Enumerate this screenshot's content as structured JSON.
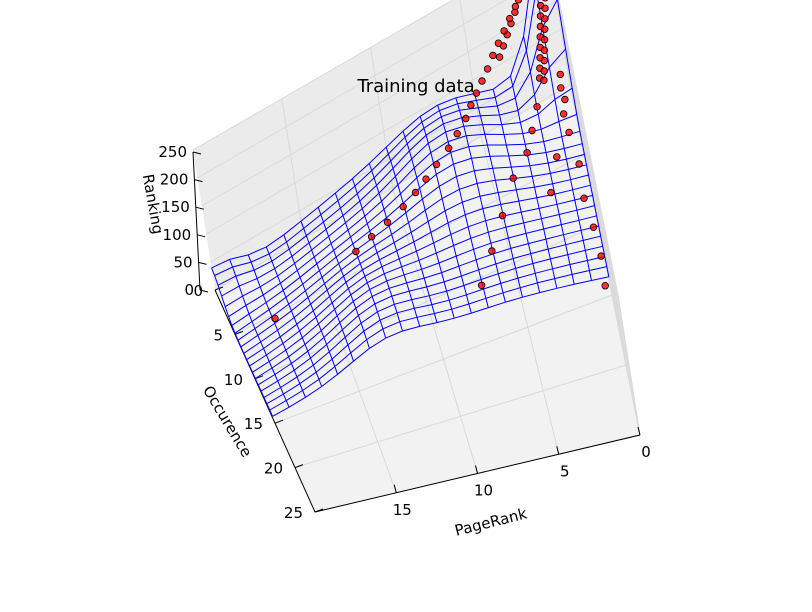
{
  "chart_data": {
    "type": "scatter",
    "subtype": "3d-surface-with-scatter",
    "title": "Training data",
    "xlabel": "PageRank",
    "ylabel": "Occurence",
    "zlabel": "Ranking",
    "xlim": [
      0,
      20
    ],
    "ylim": [
      0,
      25
    ],
    "zlim": [
      0,
      250
    ],
    "x_ticks": [
      "0",
      "5",
      "10",
      "15"
    ],
    "y_ticks": [
      "0",
      "5",
      "10",
      "15",
      "20",
      "25"
    ],
    "z_ticks": [
      "0",
      "50",
      "100",
      "150",
      "200",
      "250"
    ],
    "grid": true,
    "surface_color": "#0000ff",
    "point_color": "#ff0000",
    "point_edge_color": "#000000",
    "pane_color": "#f2f2f2",
    "surface_grid": {
      "rows": 20,
      "cols": 20
    },
    "points": [
      [
        0.0,
        0.0,
        255
      ],
      [
        0.1,
        0.0,
        250
      ],
      [
        0.2,
        0.1,
        246
      ],
      [
        0.3,
        0.1,
        240
      ],
      [
        0.2,
        0.2,
        236
      ],
      [
        0.4,
        0.2,
        230
      ],
      [
        0.5,
        0.3,
        225
      ],
      [
        0.3,
        0.3,
        220
      ],
      [
        0.6,
        0.4,
        214
      ],
      [
        0.4,
        0.5,
        208
      ],
      [
        0.7,
        0.5,
        202
      ],
      [
        0.5,
        0.6,
        196
      ],
      [
        0.8,
        0.6,
        190
      ],
      [
        0.6,
        0.7,
        184
      ],
      [
        0.9,
        0.8,
        178
      ],
      [
        0.7,
        0.9,
        172
      ],
      [
        1.0,
        1.0,
        166
      ],
      [
        0.8,
        1.1,
        160
      ],
      [
        1.1,
        1.2,
        154
      ],
      [
        0.9,
        1.3,
        148
      ],
      [
        1.2,
        1.4,
        142
      ],
      [
        1.0,
        1.5,
        136
      ],
      [
        1.3,
        1.6,
        130
      ],
      [
        1.1,
        1.7,
        124
      ],
      [
        1.4,
        1.8,
        118
      ],
      [
        1.2,
        1.9,
        112
      ],
      [
        1.5,
        2.0,
        106
      ],
      [
        1.3,
        2.1,
        100
      ],
      [
        1.6,
        2.2,
        95
      ],
      [
        1.4,
        2.3,
        90
      ],
      [
        1.0,
        0.2,
        244
      ],
      [
        1.2,
        0.3,
        238
      ],
      [
        1.5,
        0.5,
        228
      ],
      [
        1.8,
        0.6,
        218
      ],
      [
        2.0,
        0.8,
        208
      ],
      [
        2.3,
        1.0,
        196
      ],
      [
        2.6,
        1.2,
        186
      ],
      [
        2.9,
        1.4,
        176
      ],
      [
        3.2,
        1.6,
        166
      ],
      [
        3.5,
        1.8,
        156
      ],
      [
        1.8,
        0.2,
        200
      ],
      [
        2.2,
        0.4,
        190
      ],
      [
        2.6,
        0.5,
        178
      ],
      [
        3.0,
        0.7,
        168
      ],
      [
        3.4,
        0.9,
        158
      ],
      [
        3.8,
        1.1,
        148
      ],
      [
        4.2,
        1.4,
        138
      ],
      [
        4.6,
        1.6,
        128
      ],
      [
        5.0,
        1.8,
        118
      ],
      [
        5.4,
        2.0,
        108
      ],
      [
        5.8,
        2.4,
        100
      ],
      [
        6.4,
        2.8,
        92
      ],
      [
        7.0,
        3.2,
        85
      ],
      [
        7.8,
        3.6,
        78
      ],
      [
        8.5,
        4.0,
        72
      ],
      [
        9.2,
        4.4,
        68
      ],
      [
        10.0,
        4.8,
        64
      ],
      [
        11.0,
        5.2,
        60
      ],
      [
        12.0,
        5.6,
        58
      ],
      [
        13.0,
        6.0,
        55
      ],
      [
        0.5,
        2.5,
        90
      ],
      [
        0.6,
        3.0,
        80
      ],
      [
        0.5,
        3.5,
        70
      ],
      [
        0.7,
        4.0,
        60
      ],
      [
        0.6,
        5.0,
        50
      ],
      [
        0.4,
        7.0,
        40
      ],
      [
        0.5,
        9.0,
        30
      ],
      [
        0.3,
        11.0,
        25
      ],
      [
        0.2,
        13.0,
        22
      ],
      [
        0.3,
        15.0,
        20
      ],
      [
        2.0,
        3.0,
        70
      ],
      [
        2.5,
        4.0,
        60
      ],
      [
        3.0,
        5.0,
        52
      ],
      [
        4.0,
        6.0,
        46
      ],
      [
        5.0,
        8.0,
        40
      ],
      [
        6.0,
        10.0,
        36
      ],
      [
        7.0,
        12.0,
        32
      ],
      [
        1.5,
        6.0,
        45
      ],
      [
        2.2,
        8.0,
        40
      ],
      [
        18.0,
        7.0,
        30
      ]
    ]
  }
}
